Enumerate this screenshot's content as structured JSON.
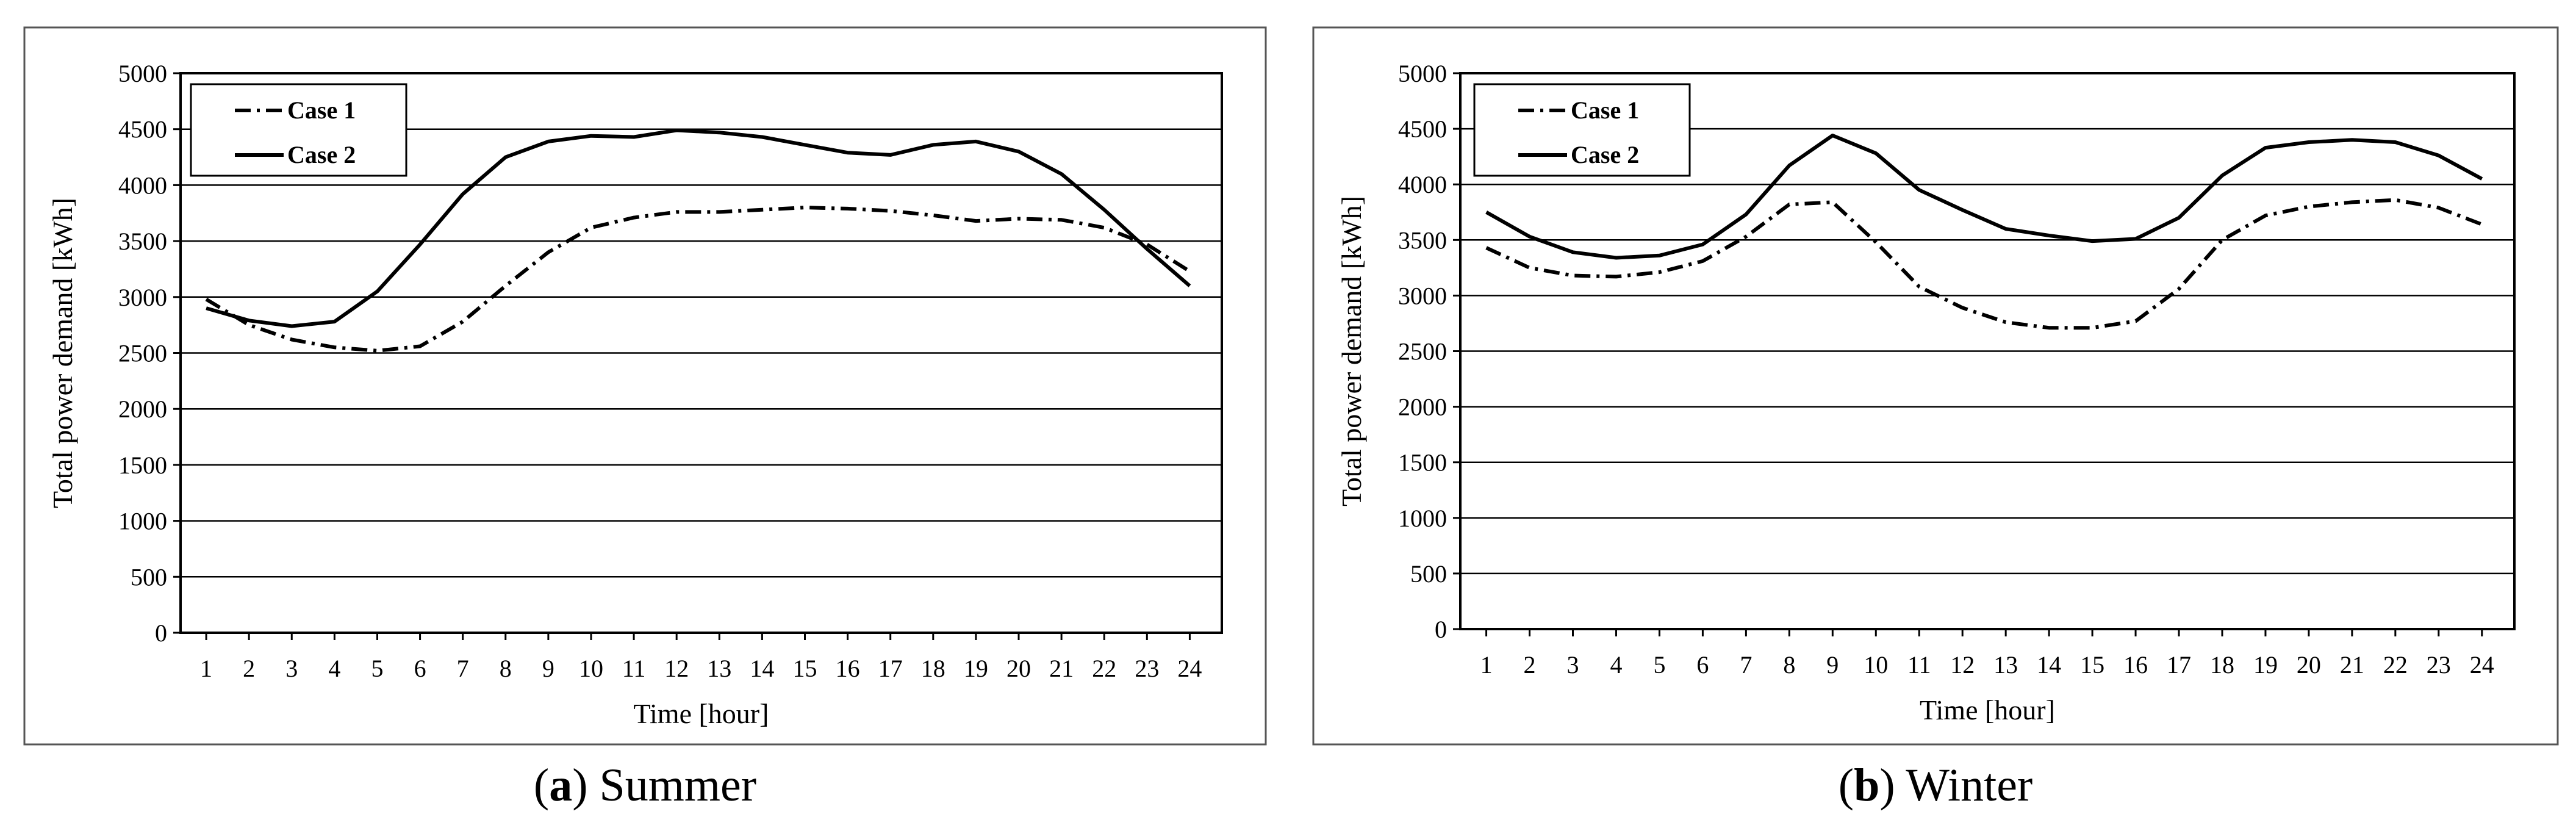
{
  "chart_data": [
    {
      "type": "line",
      "caption_letter": "a",
      "caption_text": "Summer",
      "xlabel": "Time [hour]",
      "ylabel": "Total power demand [kWh]",
      "ylim": [
        0,
        5000
      ],
      "yticks": [
        0,
        500,
        1000,
        1500,
        2000,
        2500,
        3000,
        3500,
        4000,
        4500,
        5000
      ],
      "x": [
        1,
        2,
        3,
        4,
        5,
        6,
        7,
        8,
        9,
        10,
        11,
        12,
        13,
        14,
        15,
        16,
        17,
        18,
        19,
        20,
        21,
        22,
        23,
        24
      ],
      "grid": "horizontal",
      "legend_position": "top-left",
      "series": [
        {
          "name": "Case 1",
          "style": "dash-dot",
          "values": [
            2980,
            2750,
            2620,
            2550,
            2520,
            2560,
            2780,
            3100,
            3400,
            3620,
            3710,
            3760,
            3760,
            3780,
            3800,
            3790,
            3770,
            3730,
            3680,
            3700,
            3690,
            3620,
            3470,
            3230
          ]
        },
        {
          "name": "Case 2",
          "style": "solid",
          "values": [
            2900,
            2790,
            2740,
            2780,
            3050,
            3470,
            3920,
            4250,
            4390,
            4440,
            4430,
            4490,
            4470,
            4430,
            4360,
            4290,
            4270,
            4360,
            4390,
            4300,
            4100,
            3780,
            3430,
            3100
          ]
        }
      ]
    },
    {
      "type": "line",
      "caption_letter": "b",
      "caption_text": "Winter",
      "xlabel": "Time [hour]",
      "ylabel": "Total power demand [kWh]",
      "ylim": [
        0,
        5000
      ],
      "yticks": [
        0,
        500,
        1000,
        1500,
        2000,
        2500,
        3000,
        3500,
        4000,
        4500,
        5000
      ],
      "x": [
        1,
        2,
        3,
        4,
        5,
        6,
        7,
        8,
        9,
        10,
        11,
        12,
        13,
        14,
        15,
        16,
        17,
        18,
        19,
        20,
        21,
        22,
        23,
        24
      ],
      "grid": "horizontal",
      "legend_position": "top-left",
      "series": [
        {
          "name": "Case 1",
          "style": "dash-dot",
          "values": [
            3430,
            3250,
            3180,
            3170,
            3210,
            3310,
            3530,
            3820,
            3840,
            3480,
            3080,
            2890,
            2760,
            2710,
            2710,
            2770,
            3060,
            3500,
            3720,
            3800,
            3840,
            3860,
            3790,
            3640
          ]
        },
        {
          "name": "Case 2",
          "style": "solid",
          "values": [
            3750,
            3530,
            3390,
            3340,
            3360,
            3460,
            3730,
            4170,
            4440,
            4280,
            3950,
            3770,
            3600,
            3540,
            3490,
            3510,
            3700,
            4080,
            4330,
            4380,
            4400,
            4380,
            4260,
            4050
          ]
        }
      ]
    }
  ]
}
